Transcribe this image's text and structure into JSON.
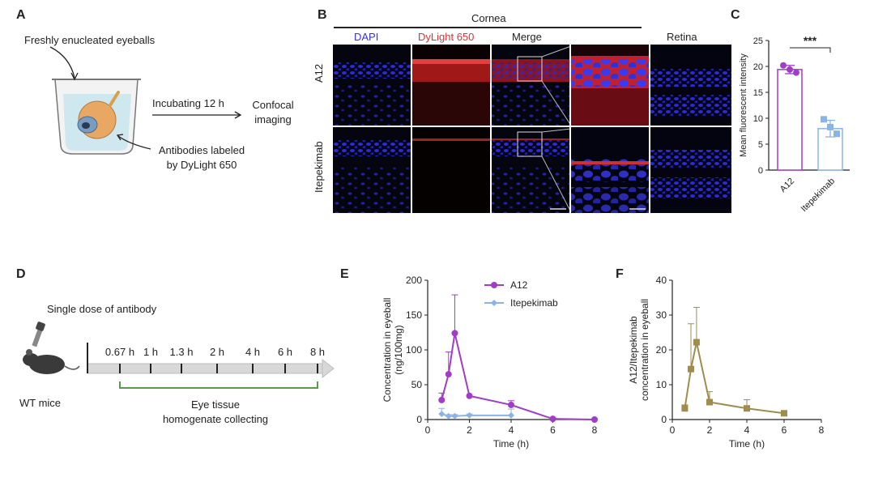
{
  "panels": {
    "A": {
      "letter": "A",
      "eyeballs_label": "Freshly enucleated eyeballs",
      "incubation_label": "Incubating 12 h",
      "result_label_1": "Confocal",
      "result_label_2": "imaging",
      "antibody_label_1": "Antibodies labeled",
      "antibody_label_2": "by DyLight 650"
    },
    "B": {
      "letter": "B",
      "cornea_label": "Cornea",
      "retina_label": "Retina",
      "channels": [
        "DAPI",
        "DyLight 650",
        "Merge"
      ],
      "rows": [
        "A12",
        "Itepekimab"
      ],
      "colors": {
        "dapi": "#3030e0",
        "dylight": "#e03030"
      }
    },
    "C": {
      "letter": "C",
      "significance": "***"
    },
    "D": {
      "letter": "D",
      "title": "Single dose of antibody",
      "timepoints": [
        "0.67 h",
        "1 h",
        "1.3 h",
        "2 h",
        "4 h",
        "6 h",
        "8 h"
      ],
      "subject_label": "WT mice",
      "collect_label_1": "Eye tissue",
      "collect_label_2": "homogenate collecting",
      "bracket_color": "#5a9a4a"
    },
    "E": {
      "letter": "E"
    },
    "F": {
      "letter": "F"
    }
  },
  "chart_data": [
    {
      "id": "C",
      "type": "bar",
      "categories": [
        "A12",
        "Itepekimab"
      ],
      "values": [
        19.4,
        8.0
      ],
      "errors": [
        0.8,
        1.6
      ],
      "points": [
        [
          20.2,
          19.4,
          18.8
        ],
        [
          9.8,
          8.3,
          7.0
        ]
      ],
      "ylabel": "Mean fluorescent intensity",
      "ylim": [
        0,
        25
      ],
      "yticks": [
        0,
        5,
        10,
        15,
        20,
        25
      ],
      "colors": [
        "#a03cc8",
        "#8ab4e8"
      ]
    },
    {
      "id": "E",
      "type": "line",
      "xlabel": "Time (h)",
      "ylabel": "Concentration in eyeball",
      "ylabel2": "(ng/100mg)",
      "xlim": [
        0,
        8
      ],
      "ylim": [
        0,
        200
      ],
      "xticks": [
        0,
        2,
        4,
        6,
        8
      ],
      "yticks": [
        0,
        50,
        100,
        150,
        200
      ],
      "series": [
        {
          "name": "A12",
          "color": "#a03cc8",
          "x": [
            0.67,
            1,
            1.3,
            2,
            4,
            6,
            8
          ],
          "y": [
            28,
            65,
            124,
            34,
            21,
            1,
            0
          ],
          "err": [
            10,
            32,
            55,
            0,
            6,
            1,
            0
          ]
        },
        {
          "name": "Itepekimab",
          "color": "#8ab4e8",
          "x": [
            0.67,
            1,
            1.3,
            2,
            4
          ],
          "y": [
            8,
            5,
            5,
            6,
            6
          ],
          "err": [
            8,
            2,
            2,
            2,
            9
          ]
        }
      ]
    },
    {
      "id": "F",
      "type": "line",
      "xlabel": "Time (h)",
      "ylabel": "A12/Itepekimab",
      "ylabel2": "concentration in eyeball",
      "xlim": [
        0,
        8
      ],
      "ylim": [
        0,
        40
      ],
      "xticks": [
        0,
        2,
        4,
        6,
        8
      ],
      "yticks": [
        0,
        10,
        20,
        30,
        40
      ],
      "series": [
        {
          "name": "A12/Itepekimab",
          "color": "#a08c4c",
          "x": [
            0.67,
            1,
            1.3,
            2,
            4,
            6
          ],
          "y": [
            3.2,
            14.5,
            22.2,
            5.0,
            3.2,
            1.8
          ],
          "err": [
            1,
            13,
            10,
            3,
            2.5,
            0.5
          ]
        }
      ]
    }
  ]
}
